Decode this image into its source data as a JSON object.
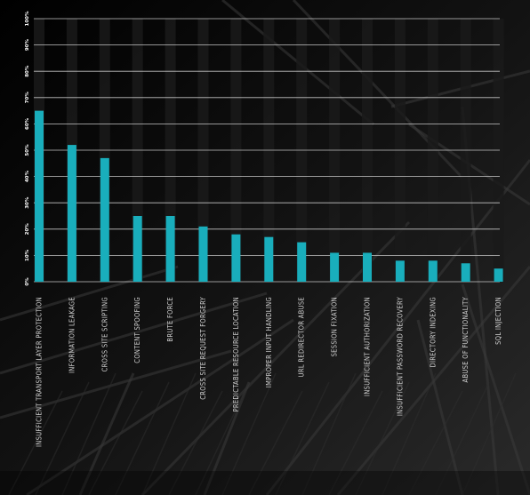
{
  "chart_data": {
    "type": "bar",
    "categories": [
      "INSUFFICIENT TRANSPORT LAYER PROTECTION",
      "INFORMATION LEAKAGE",
      "CROSS SITE SCRIPTING",
      "CONTENT SPOOFING",
      "BRUTE FORCE",
      "CROSS SITE REQUEST FORGERY",
      "PREDICTABLE RESOURCE LOCATION",
      "IMPROPER INPUT HANDLING",
      "URL REDIRECTOR ABUSE",
      "SESSION FIXATION",
      "INSUFFICIENT AUTHORIZATION",
      "INSUFFICIENT PASSWORD RECOVERY",
      "DIRECTORY INDEXING",
      "ABUSE OF FUNCTIONALITY",
      "SQL INJECTION"
    ],
    "values": [
      65,
      52,
      47,
      25,
      25,
      21,
      18,
      17,
      15,
      11,
      11,
      8,
      8,
      7,
      5
    ],
    "yticks": [
      "0%",
      "10%",
      "20%",
      "30%",
      "40%",
      "50%",
      "60%",
      "70%",
      "80%",
      "90%",
      "100%"
    ],
    "ylim": [
      0,
      100
    ],
    "bar_color": "#19aebc",
    "track_color": "#1a1a1a",
    "grid": true,
    "grid_color": "#d8d8d8",
    "label_color": "#cfcfcf"
  }
}
